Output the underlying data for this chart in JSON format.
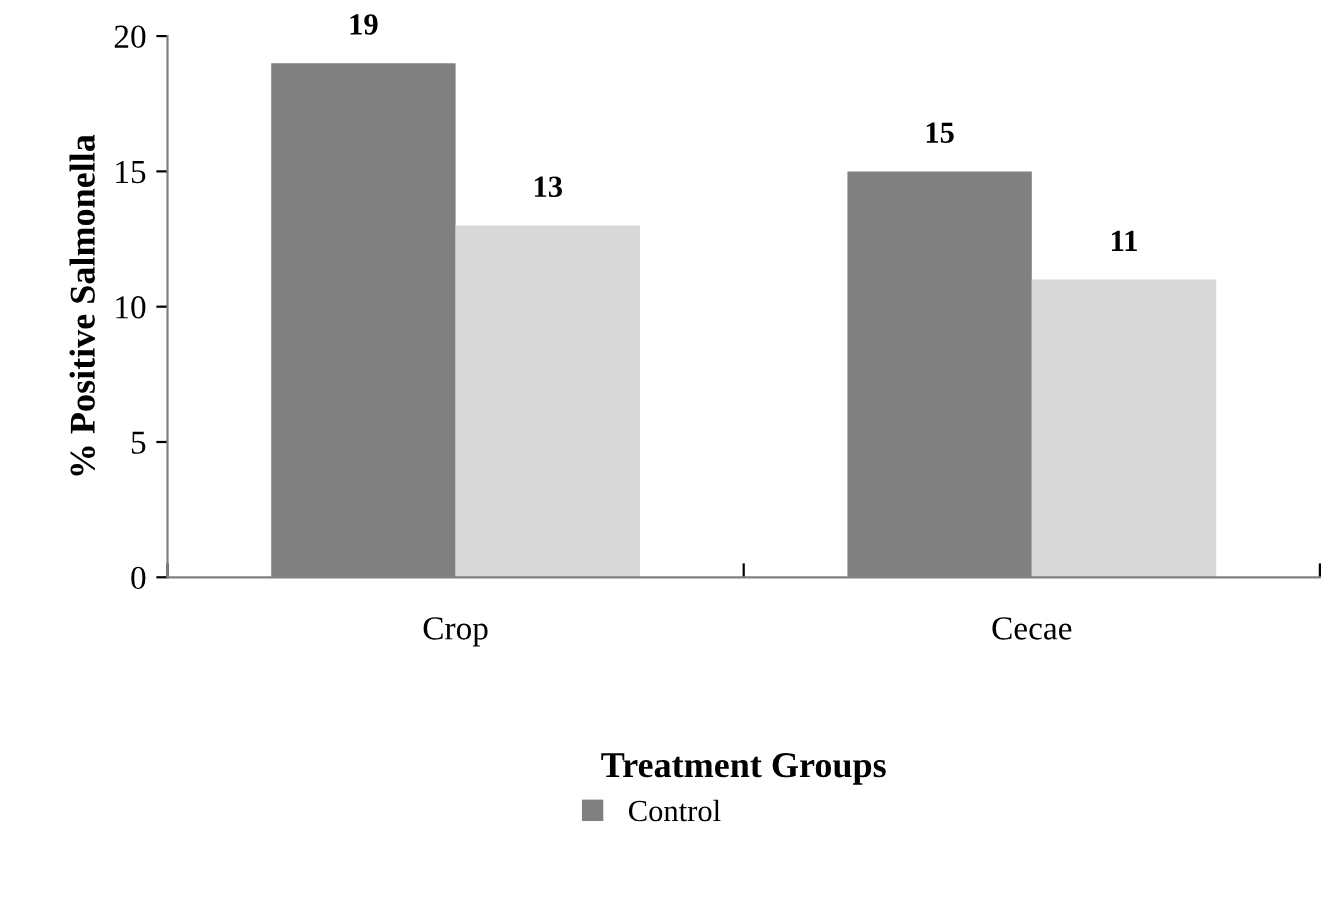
{
  "chart_data": {
    "type": "bar",
    "xlabel": "Treatment Groups",
    "ylabel": "% Positive Salmonella",
    "categories": [
      "Crop",
      "Cecae"
    ],
    "series": [
      {
        "name": "Control",
        "color": "#808080",
        "values": [
          19,
          15
        ]
      },
      {
        "color": "#d9d9d9",
        "values": [
          13,
          11
        ]
      }
    ],
    "ylim": [
      0,
      20
    ],
    "yticks": [
      0,
      5,
      10,
      15,
      20
    ],
    "data_labels": true,
    "grid": false,
    "legend": "bottom"
  }
}
